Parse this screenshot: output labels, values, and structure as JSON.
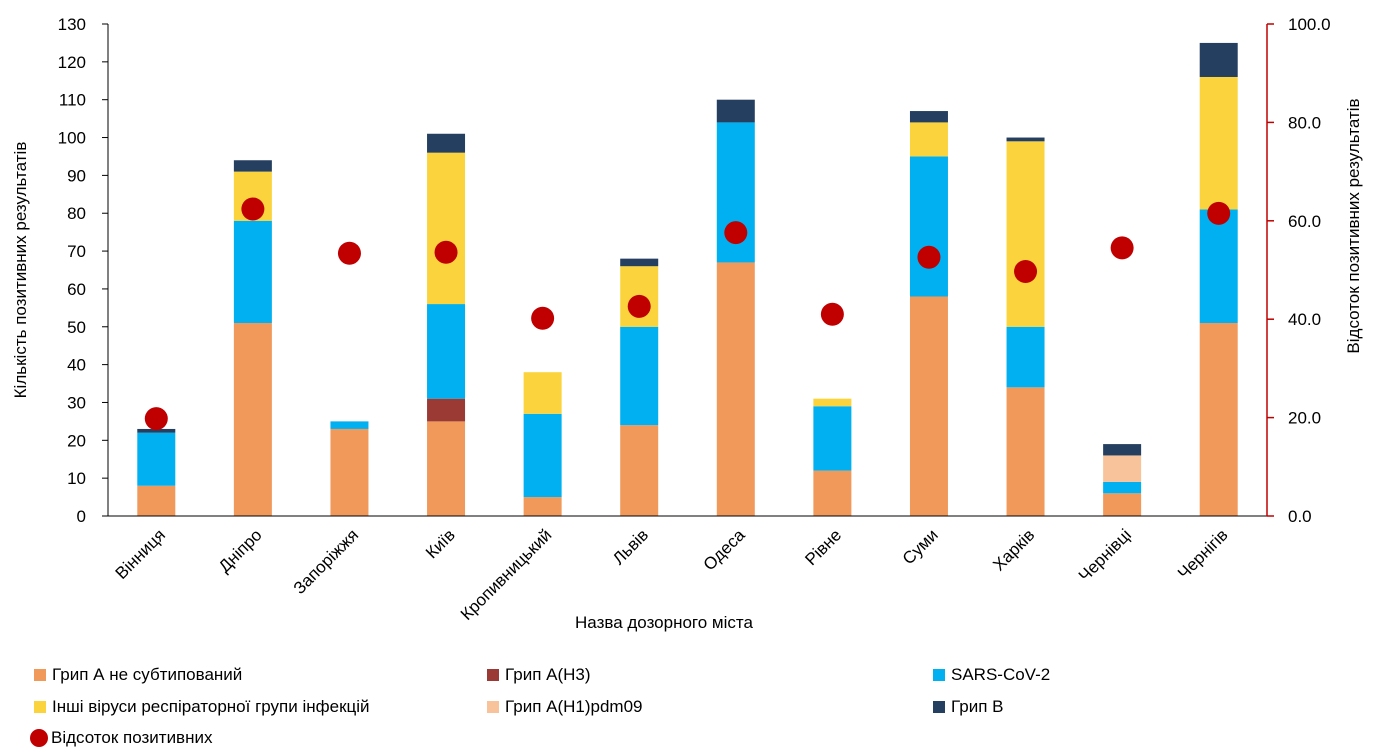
{
  "chart_data": {
    "type": "bar",
    "stacked": true,
    "xlabel": "Назва дозорного міста",
    "ylabel": "Кількість позитивних результатів",
    "y2label": "Відсоток позитивних результатів",
    "ylim": [
      0,
      130
    ],
    "y2lim": [
      0,
      100
    ],
    "yticks": [
      "0",
      "10",
      "20",
      "30",
      "40",
      "50",
      "60",
      "70",
      "80",
      "90",
      "100",
      "110",
      "120",
      "130"
    ],
    "y2ticks": [
      "0.0",
      "20.0",
      "40.0",
      "60.0",
      "80.0",
      "100.0"
    ],
    "grid": false,
    "legend_position": "bottom",
    "categories": [
      "Вінниця",
      "Дніпро",
      "Запоріжжя",
      "Київ",
      "Кропивницький",
      "Львів",
      "Одеса",
      "Рівне",
      "Суми",
      "Харків",
      "Чернівці",
      "Чернігів"
    ],
    "series": [
      {
        "name": "Грип А не субтипований",
        "color": "#f0995a",
        "values": [
          8,
          51,
          23,
          25,
          5,
          24,
          67,
          12,
          58,
          34,
          6,
          51
        ]
      },
      {
        "name": "Грип A(H3)",
        "color": "#9b3a35",
        "values": [
          0,
          0,
          0,
          6,
          0,
          0,
          0,
          0,
          0,
          0,
          0,
          0
        ]
      },
      {
        "name": "SARS-CoV-2",
        "color": "#00b0f0",
        "values": [
          14,
          27,
          2,
          25,
          22,
          26,
          37,
          17,
          37,
          16,
          3,
          30
        ]
      },
      {
        "name": "Інші віруси респіраторної групи інфекцій",
        "color": "#fbd43d",
        "values": [
          0,
          13,
          0,
          40,
          11,
          16,
          0,
          2,
          9,
          49,
          0,
          35
        ]
      },
      {
        "name": "Грип A(H1)pdm09",
        "color": "#f8c39a",
        "values": [
          0,
          0,
          0,
          0,
          0,
          0,
          0,
          0,
          0,
          0,
          7,
          0
        ]
      },
      {
        "name": "Грип В",
        "color": "#243f60",
        "values": [
          1,
          3,
          0,
          5,
          0,
          2,
          6,
          0,
          3,
          1,
          3,
          9
        ]
      }
    ],
    "line_series": {
      "name": "Відсоток позитивних",
      "axis": "right",
      "color": "#c00000",
      "values": [
        19.8,
        62.4,
        53.4,
        53.6,
        40.2,
        42.6,
        57.6,
        41.0,
        52.6,
        49.7,
        54.5,
        61.5
      ]
    }
  }
}
